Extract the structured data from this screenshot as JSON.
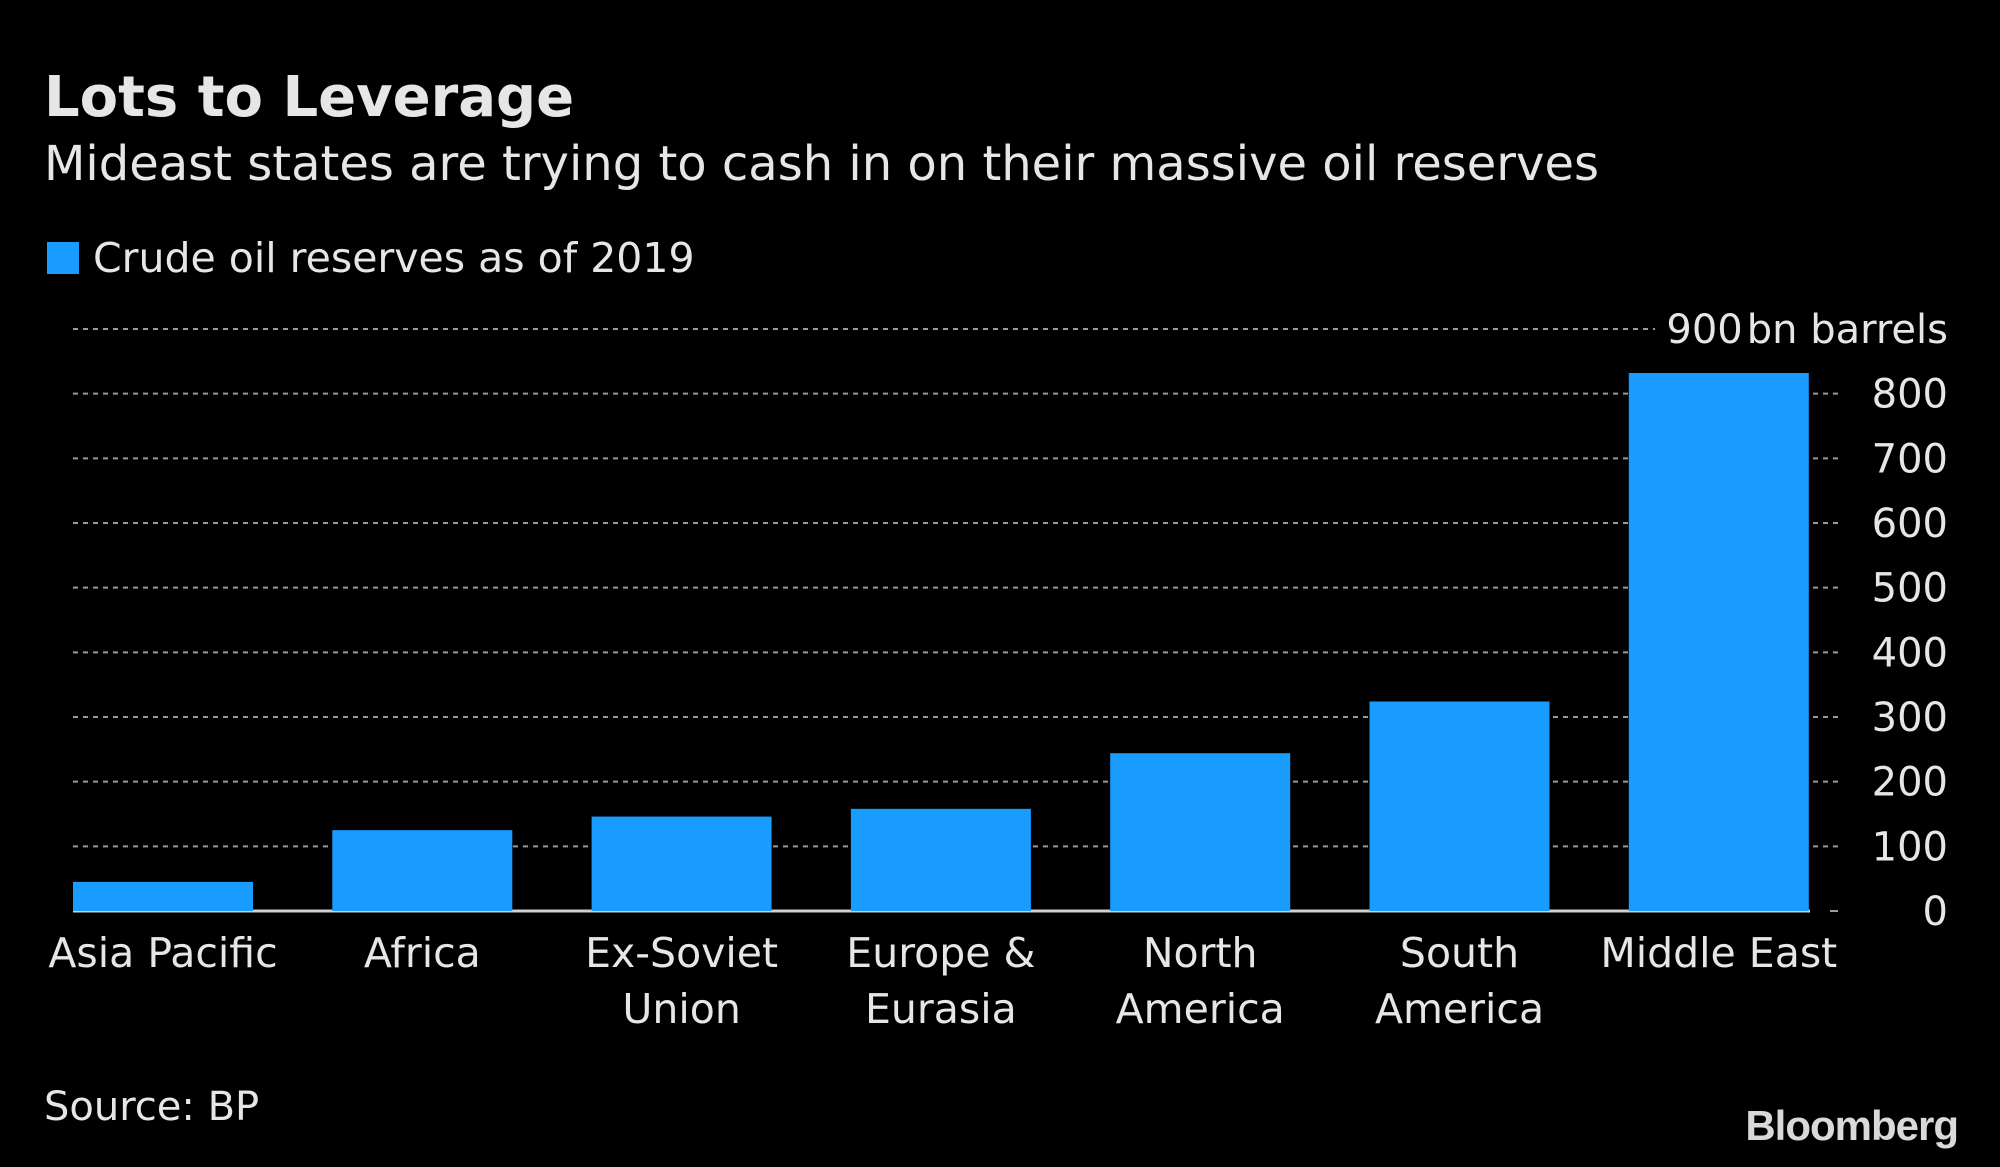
{
  "chart_data": {
    "type": "bar",
    "title": "Lots to Leverage",
    "subtitle": "Mideast states are trying to cash in on their massive oil reserves",
    "legend": {
      "entries": [
        "Crude oil reserves as of 2019"
      ],
      "placement": "top-left"
    },
    "categories": [
      [
        "Asia Pacific"
      ],
      [
        "Africa"
      ],
      [
        "Ex-Soviet",
        "Union"
      ],
      [
        "Europe &",
        "Eurasia"
      ],
      [
        "North",
        "America"
      ],
      [
        "South",
        "America"
      ],
      [
        "Middle East"
      ]
    ],
    "series": [
      {
        "name": "Crude oil reserves as of 2019",
        "values": [
          45,
          125,
          146,
          158,
          244,
          324,
          832
        ],
        "color": "#1a9cff"
      }
    ],
    "yaxis": {
      "position": "right",
      "ticks": [
        "0",
        "100",
        "200",
        "300",
        "400",
        "500",
        "600",
        "700",
        "800",
        "900"
      ],
      "unit_label": "bn barrels",
      "ylim": [
        0,
        900
      ]
    },
    "grid": "dotted horizontal",
    "source": "Source: BP",
    "logo": "Bloomberg"
  }
}
